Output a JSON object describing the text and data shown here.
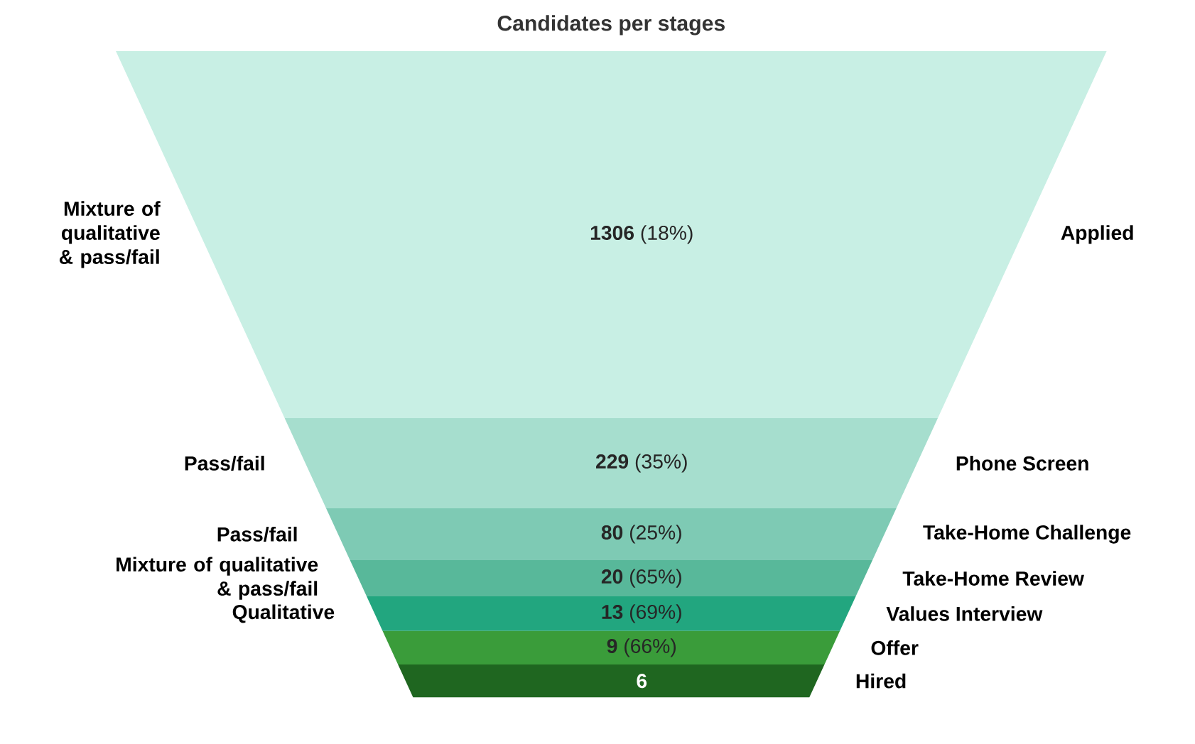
{
  "chart_data": {
    "type": "other",
    "title": "Candidates per stages",
    "categories": [
      "Applied",
      "Phone Screen",
      "Take-Home Challenge",
      "Take-Home Review",
      "Values Interview",
      "Offer",
      "Hired"
    ],
    "values": [
      1306,
      229,
      80,
      20,
      13,
      9,
      6
    ],
    "value_labels": [
      "**1306**  (18%)",
      "**229**  (35%)",
      "**80**  (25%)",
      "**20**  (65%)",
      "**13**  (69%)",
      "**9**  (66%)",
      "**6**"
    ],
    "colors": [
      "#c8efe4",
      "#a6dece",
      "#7ecab4",
      "#58b89a",
      "#22a67f",
      "#3a9c3a",
      "#1f6620"
    ],
    "annotations": [
      "Mixture of qualitative & pass/fail",
      "Pass/fail",
      "Pass/fail",
      "Mixture of qualitative & pass/fail",
      "Qualitative",
      null,
      null
    ]
  }
}
